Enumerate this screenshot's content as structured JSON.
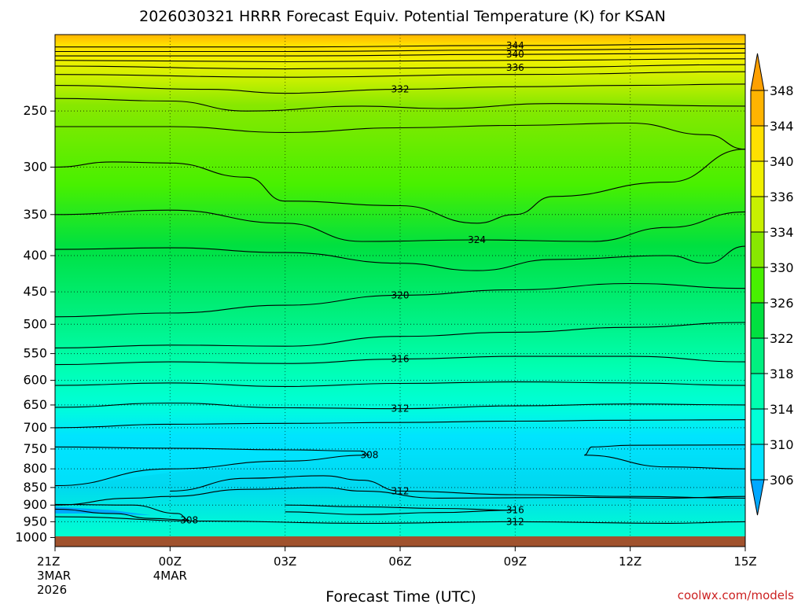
{
  "chart_data": {
    "type": "contour",
    "title": "2026030321 HRRR Forecast Equiv. Potential Temperature (K) for KSAN",
    "xlabel": "Forecast Time (UTC)",
    "credit": "coolwx.com/models",
    "credit_color": "#cc2222",
    "ground_color": "#a0522d",
    "x_ticks": [
      {
        "hour": 0,
        "label": "21Z",
        "sub1": "3MAR",
        "sub2": "2026"
      },
      {
        "hour": 3,
        "label": "00Z",
        "sub1": "4MAR",
        "sub2": ""
      },
      {
        "hour": 6,
        "label": "03Z",
        "sub1": "",
        "sub2": ""
      },
      {
        "hour": 9,
        "label": "06Z",
        "sub1": "",
        "sub2": ""
      },
      {
        "hour": 12,
        "label": "09Z",
        "sub1": "",
        "sub2": ""
      },
      {
        "hour": 15,
        "label": "12Z",
        "sub1": "",
        "sub2": ""
      },
      {
        "hour": 18,
        "label": "15Z",
        "sub1": "",
        "sub2": ""
      }
    ],
    "y_axis": {
      "unit": "hPa",
      "scale": "log",
      "range": [
        1030,
        195
      ],
      "ticks": [
        250,
        300,
        350,
        400,
        450,
        500,
        550,
        600,
        650,
        700,
        750,
        800,
        850,
        900,
        950,
        1000
      ]
    },
    "colorbar": {
      "levels": [
        306,
        310,
        314,
        318,
        322,
        326,
        330,
        334,
        336,
        340,
        344,
        348
      ],
      "colors": [
        "#00a8ff",
        "#00e4ff",
        "#00ffd8",
        "#00ffb0",
        "#00f080",
        "#00e040",
        "#48f000",
        "#88e800",
        "#c8f000",
        "#f0f000",
        "#ffe000",
        "#ffb400",
        "#ffa000"
      ]
    },
    "contours": [
      {
        "value": 344,
        "label": true,
        "points": [
          [
            0,
            203
          ],
          [
            6,
            203
          ],
          [
            12,
            202
          ],
          [
            18,
            201
          ]
        ]
      },
      {
        "value": 342,
        "label": false,
        "points": [
          [
            0,
            206
          ],
          [
            6,
            206
          ],
          [
            12,
            205
          ],
          [
            18,
            204
          ]
        ]
      },
      {
        "value": 340,
        "label": true,
        "points": [
          [
            0,
            209
          ],
          [
            6,
            209
          ],
          [
            12,
            208
          ],
          [
            18,
            207
          ]
        ]
      },
      {
        "value": 338,
        "label": false,
        "points": [
          [
            0,
            212
          ],
          [
            6,
            213
          ],
          [
            12,
            212
          ],
          [
            18,
            211
          ]
        ]
      },
      {
        "value": 336,
        "label": true,
        "points": [
          [
            0,
            216
          ],
          [
            6,
            218
          ],
          [
            12,
            217
          ],
          [
            18,
            215
          ]
        ]
      },
      {
        "value": 334,
        "label": false,
        "points": [
          [
            0,
            222
          ],
          [
            6,
            224
          ],
          [
            12,
            222
          ],
          [
            18,
            220
          ]
        ]
      },
      {
        "value": 332,
        "label": true,
        "points": [
          [
            0,
            230
          ],
          [
            4,
            233
          ],
          [
            6,
            236
          ],
          [
            9,
            233
          ],
          [
            12,
            231
          ],
          [
            15,
            230
          ],
          [
            18,
            229
          ]
        ]
      },
      {
        "value": 330,
        "label": false,
        "points": [
          [
            0,
            240
          ],
          [
            3,
            242
          ],
          [
            5,
            250
          ],
          [
            8,
            246
          ],
          [
            10,
            248
          ],
          [
            13,
            244
          ],
          [
            18,
            246
          ]
        ]
      },
      {
        "value": 328,
        "label": false,
        "points": [
          [
            0,
            263
          ],
          [
            3,
            263
          ],
          [
            6,
            268
          ],
          [
            9,
            264
          ],
          [
            12,
            262
          ],
          [
            15,
            260
          ],
          [
            17,
            270
          ],
          [
            18,
            283
          ]
        ]
      },
      {
        "value": 326,
        "label": false,
        "points": [
          [
            0,
            300
          ],
          [
            1.5,
            295
          ],
          [
            3,
            296
          ],
          [
            5,
            310
          ],
          [
            6,
            335
          ],
          [
            9,
            340
          ],
          [
            11,
            360
          ],
          [
            12,
            350
          ],
          [
            13,
            330
          ],
          [
            16,
            315
          ],
          [
            18,
            283
          ]
        ]
      },
      {
        "value": 324,
        "label": true,
        "points": [
          [
            0,
            350
          ],
          [
            3,
            345
          ],
          [
            6,
            360
          ],
          [
            8,
            382
          ],
          [
            11,
            380
          ],
          [
            14,
            382
          ],
          [
            16,
            365
          ],
          [
            18,
            347
          ]
        ]
      },
      {
        "value": 322,
        "label": false,
        "points": [
          [
            0,
            392
          ],
          [
            3,
            390
          ],
          [
            6,
            396
          ],
          [
            9,
            410
          ],
          [
            11,
            420
          ],
          [
            13,
            405
          ],
          [
            16,
            400
          ],
          [
            17,
            410
          ],
          [
            18,
            388
          ]
        ]
      },
      {
        "value": 320,
        "label": true,
        "points": [
          [
            0,
            488
          ],
          [
            3,
            482
          ],
          [
            6,
            470
          ],
          [
            9,
            455
          ],
          [
            12,
            447
          ],
          [
            15,
            438
          ],
          [
            18,
            445
          ]
        ]
      },
      {
        "value": 318,
        "label": false,
        "points": [
          [
            0,
            540
          ],
          [
            3,
            535
          ],
          [
            6,
            537
          ],
          [
            9,
            520
          ],
          [
            12,
            513
          ],
          [
            15,
            505
          ],
          [
            18,
            497
          ]
        ]
      },
      {
        "value": 316,
        "label": true,
        "points": [
          [
            0,
            570
          ],
          [
            3,
            565
          ],
          [
            6,
            568
          ],
          [
            9,
            560
          ],
          [
            12,
            555
          ],
          [
            15,
            555
          ],
          [
            18,
            565
          ]
        ]
      },
      {
        "value": 314,
        "label": false,
        "points": [
          [
            0,
            610
          ],
          [
            3,
            605
          ],
          [
            6,
            612
          ],
          [
            9,
            606
          ],
          [
            12,
            603
          ],
          [
            15,
            605
          ],
          [
            18,
            610
          ]
        ]
      },
      {
        "value": 312,
        "label": true,
        "points": [
          [
            0,
            655
          ],
          [
            3,
            646
          ],
          [
            6,
            656
          ],
          [
            9,
            658
          ],
          [
            12,
            652
          ],
          [
            15,
            648
          ],
          [
            18,
            650
          ]
        ]
      },
      {
        "value": 310,
        "label": false,
        "points": [
          [
            0,
            700
          ],
          [
            3,
            692
          ],
          [
            6,
            690
          ],
          [
            9,
            688
          ],
          [
            12,
            685
          ],
          [
            15,
            683
          ],
          [
            18,
            682
          ]
        ]
      },
      {
        "value": 308,
        "label": true,
        "points": [
          [
            0,
            745
          ],
          [
            3,
            748
          ],
          [
            6,
            752
          ],
          [
            8,
            755
          ],
          [
            8.2,
            765
          ],
          [
            6,
            780
          ],
          [
            3,
            800
          ],
          [
            0,
            845
          ]
        ]
      },
      {
        "value": 308,
        "label": false,
        "points": [
          [
            18,
            740
          ],
          [
            15,
            741
          ],
          [
            14,
            745
          ],
          [
            13.8,
            765
          ],
          [
            16,
            795
          ],
          [
            18,
            800
          ]
        ]
      },
      {
        "value": 312,
        "label": true,
        "points": [
          [
            3,
            860
          ],
          [
            5,
            825
          ],
          [
            7,
            818
          ],
          [
            8,
            830
          ],
          [
            9,
            860
          ],
          [
            12,
            870
          ],
          [
            15,
            875
          ],
          [
            18,
            880
          ]
        ]
      },
      {
        "value": 310,
        "label": false,
        "points": [
          [
            0,
            900
          ],
          [
            2,
            880
          ],
          [
            3,
            875
          ],
          [
            5,
            855
          ],
          [
            7,
            850
          ],
          [
            8,
            860
          ],
          [
            10,
            880
          ],
          [
            14,
            878
          ],
          [
            16,
            880
          ],
          [
            18,
            875
          ]
        ]
      },
      {
        "value": 308,
        "label": true,
        "points": [
          [
            0,
            912
          ],
          [
            1.5,
            925
          ],
          [
            2.5,
            940
          ],
          [
            3.5,
            945
          ],
          [
            3.2,
            925
          ],
          [
            2,
            900
          ],
          [
            0,
            898
          ]
        ]
      },
      {
        "value": 316,
        "label": true,
        "points": [
          [
            6,
            900
          ],
          [
            8,
            905
          ],
          [
            10,
            910
          ],
          [
            12,
            915
          ],
          [
            10,
            922
          ],
          [
            8,
            928
          ],
          [
            6,
            920
          ]
        ]
      },
      {
        "value": 312,
        "label": true,
        "points": [
          [
            0,
            935
          ],
          [
            4,
            948
          ],
          [
            8,
            955
          ],
          [
            12,
            950
          ],
          [
            16,
            955
          ],
          [
            18,
            950
          ]
        ]
      }
    ]
  }
}
